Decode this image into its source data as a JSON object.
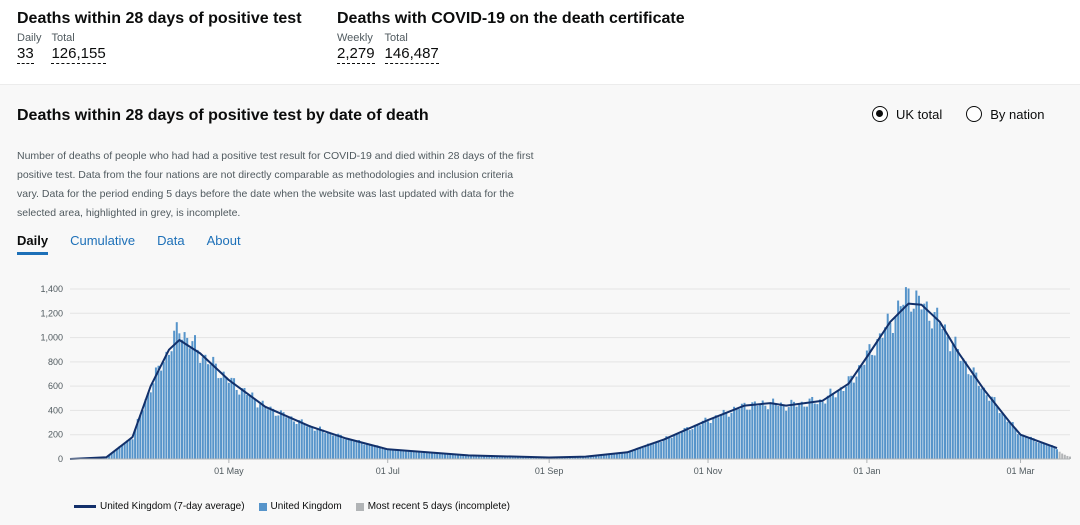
{
  "headline_left": {
    "title": "Deaths within 28 days of positive test",
    "daily_label": "Daily",
    "daily_value": "33",
    "total_label": "Total",
    "total_value": "126,155"
  },
  "headline_right": {
    "title": "Deaths with COVID-19 on the death certificate",
    "weekly_label": "Weekly",
    "weekly_value": "2,279",
    "total_label": "Total",
    "total_value": "146,487"
  },
  "card": {
    "title": "Deaths within 28 days of positive test by date of death",
    "description": "Number of deaths of people who had had a positive test result for COVID-19 and died within 28 days of the first positive test. Data from the four nations are not directly comparable as methodologies and inclusion criteria vary. Data for the period ending 5 days before the date when the website was last updated with data for the selected area, highlighted in grey, is incomplete.",
    "radio_uk": "UK total",
    "radio_nation": "By nation",
    "tabs": {
      "daily": "Daily",
      "cumulative": "Cumulative",
      "data": "Data",
      "about": "About"
    }
  },
  "colors": {
    "bar": "#5694ca",
    "line": "#12306a",
    "grey": "#b1b4b6",
    "link": "#1d70b8"
  },
  "chart_data": {
    "type": "bar",
    "xlabel": "",
    "ylabel": "",
    "ylim": [
      0,
      1400
    ],
    "yticks": [
      0,
      200,
      400,
      600,
      800,
      1000,
      1200,
      1400
    ],
    "ytick_labels": [
      "0",
      "200",
      "400",
      "600",
      "800",
      "1,000",
      "1,200",
      "1,400"
    ],
    "xtick_labels": [
      "01 May",
      "01 Jul",
      "01 Sep",
      "01 Nov",
      "01 Jan",
      "01 Mar"
    ],
    "grid": true,
    "legend_position": "bottom-left",
    "series": [
      {
        "name": "United Kingdom (7-day average)",
        "kind": "line",
        "x": [
          "2020-03-01",
          "2020-03-15",
          "2020-03-25",
          "2020-04-01",
          "2020-04-08",
          "2020-04-12",
          "2020-04-20",
          "2020-05-01",
          "2020-05-15",
          "2020-06-01",
          "2020-06-15",
          "2020-07-01",
          "2020-08-01",
          "2020-09-01",
          "2020-09-15",
          "2020-10-01",
          "2020-10-15",
          "2020-11-01",
          "2020-11-15",
          "2020-11-25",
          "2020-12-01",
          "2020-12-15",
          "2020-12-25",
          "2021-01-01",
          "2021-01-10",
          "2021-01-17",
          "2021-01-22",
          "2021-01-29",
          "2021-02-05",
          "2021-02-15",
          "2021-02-25",
          "2021-03-01",
          "2021-03-15"
        ],
        "values": [
          0,
          15,
          180,
          600,
          900,
          980,
          870,
          650,
          430,
          270,
          170,
          80,
          30,
          12,
          20,
          55,
          160,
          320,
          440,
          460,
          440,
          480,
          620,
          840,
          1130,
          1280,
          1270,
          1130,
          880,
          570,
          300,
          200,
          90
        ]
      },
      {
        "name": "United Kingdom",
        "kind": "bar",
        "x": [
          "2020-03-01",
          "2020-03-15",
          "2020-03-25",
          "2020-04-01",
          "2020-04-08",
          "2020-04-12",
          "2020-04-20",
          "2020-05-01",
          "2020-05-15",
          "2020-06-01",
          "2020-06-15",
          "2020-07-01",
          "2020-08-01",
          "2020-09-01",
          "2020-09-15",
          "2020-10-01",
          "2020-10-15",
          "2020-11-01",
          "2020-11-15",
          "2020-11-25",
          "2020-12-01",
          "2020-12-15",
          "2020-12-25",
          "2021-01-01",
          "2021-01-10",
          "2021-01-17",
          "2021-01-22",
          "2021-01-29",
          "2021-02-05",
          "2021-02-15",
          "2021-02-25",
          "2021-03-01",
          "2021-03-15"
        ],
        "values": [
          0,
          15,
          180,
          600,
          900,
          1075,
          870,
          650,
          430,
          270,
          170,
          80,
          30,
          12,
          20,
          55,
          160,
          320,
          440,
          460,
          440,
          480,
          620,
          840,
          1130,
          1360,
          1270,
          1130,
          880,
          570,
          300,
          200,
          90
        ]
      },
      {
        "name": "Most recent 5 days (incomplete)",
        "kind": "bar",
        "x": [
          "2021-03-16",
          "2021-03-17",
          "2021-03-18",
          "2021-03-19",
          "2021-03-20"
        ],
        "values": [
          60,
          45,
          35,
          25,
          20
        ]
      }
    ]
  }
}
